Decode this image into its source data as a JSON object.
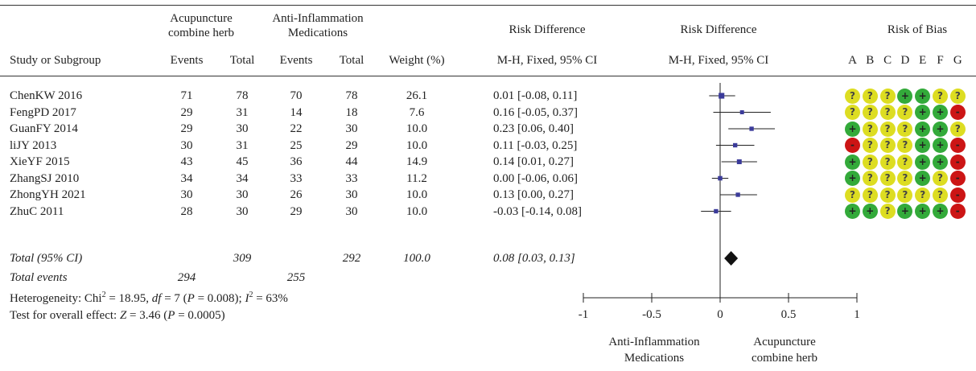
{
  "header": {
    "group1_line1": "Acupuncture",
    "group1_line2": "combine herb",
    "group2_line1": "Anti-Inflammation",
    "group2_line2": "Medications",
    "rd_title": "Risk Difference",
    "rd_plot_title": "Risk Difference",
    "rob_title": "Risk of Bias",
    "study_col": "Study or Subgroup",
    "events1": "Events",
    "total1": "Total",
    "events2": "Events",
    "total2": "Total",
    "weight": "Weight (%)",
    "rd_method": "M-H, Fixed, 95% CI",
    "rd_plot_method": "M-H, Fixed, 95% CI",
    "rob_letters": [
      "A",
      "B",
      "C",
      "D",
      "E",
      "F",
      "G"
    ]
  },
  "studies": [
    {
      "name": "ChenKW 2016",
      "e1": "71",
      "t1": "78",
      "e2": "70",
      "t2": "78",
      "weight": "26.1",
      "ci_text": "0.01 [-0.08, 0.11]",
      "rd": 0.01,
      "lo": -0.08,
      "hi": 0.11,
      "w": 26.1,
      "rob": [
        "?",
        "?",
        "?",
        "+",
        "+",
        "?",
        "?"
      ]
    },
    {
      "name": "FengPD 2017",
      "e1": "29",
      "t1": "31",
      "e2": "14",
      "t2": "18",
      "weight": "7.6",
      "ci_text": "0.16 [-0.05, 0.37]",
      "rd": 0.16,
      "lo": -0.05,
      "hi": 0.37,
      "w": 7.6,
      "rob": [
        "?",
        "?",
        "?",
        "?",
        "+",
        "+",
        "-"
      ]
    },
    {
      "name": "GuanFY 2014",
      "e1": "29",
      "t1": "30",
      "e2": "22",
      "t2": "30",
      "weight": "10.0",
      "ci_text": "0.23 [0.06, 0.40]",
      "rd": 0.23,
      "lo": 0.06,
      "hi": 0.4,
      "w": 10.0,
      "rob": [
        "+",
        "?",
        "?",
        "?",
        "+",
        "+",
        "?"
      ]
    },
    {
      "name": "liJY 2013",
      "e1": "30",
      "t1": "31",
      "e2": "25",
      "t2": "29",
      "weight": "10.0",
      "ci_text": "0.11 [-0.03, 0.25]",
      "rd": 0.11,
      "lo": -0.03,
      "hi": 0.25,
      "w": 10.0,
      "rob": [
        "-",
        "?",
        "?",
        "?",
        "+",
        "+",
        "-"
      ]
    },
    {
      "name": "XieYF 2015",
      "e1": "43",
      "t1": "45",
      "e2": "36",
      "t2": "44",
      "weight": "14.9",
      "ci_text": "0.14 [0.01, 0.27]",
      "rd": 0.14,
      "lo": 0.01,
      "hi": 0.27,
      "w": 14.9,
      "rob": [
        "+",
        "?",
        "?",
        "?",
        "+",
        "+",
        "-"
      ]
    },
    {
      "name": "ZhangSJ 2010",
      "e1": "34",
      "t1": "34",
      "e2": "33",
      "t2": "33",
      "weight": "11.2",
      "ci_text": "0.00 [-0.06, 0.06]",
      "rd": 0.0,
      "lo": -0.06,
      "hi": 0.06,
      "w": 11.2,
      "rob": [
        "+",
        "?",
        "?",
        "?",
        "+",
        "?",
        "-"
      ]
    },
    {
      "name": "ZhongYH 2021",
      "e1": "30",
      "t1": "30",
      "e2": "26",
      "t2": "30",
      "weight": "10.0",
      "ci_text": "0.13 [0.00, 0.27]",
      "rd": 0.13,
      "lo": 0.0,
      "hi": 0.27,
      "w": 10.0,
      "rob": [
        "?",
        "?",
        "?",
        "?",
        "?",
        "?",
        "-"
      ]
    },
    {
      "name": "ZhuC 2011",
      "e1": "28",
      "t1": "30",
      "e2": "29",
      "t2": "30",
      "weight": "10.0",
      "ci_text": "-0.03 [-0.14, 0.08]",
      "rd": -0.03,
      "lo": -0.14,
      "hi": 0.08,
      "w": 10.0,
      "rob": [
        "+",
        "+",
        "?",
        "+",
        "+",
        "+",
        "-"
      ]
    }
  ],
  "total": {
    "label": "Total (95% CI)",
    "t1": "309",
    "t2": "292",
    "weight": "100.0",
    "ci_text": "0.08 [0.03, 0.13]",
    "rd": 0.08,
    "lo": 0.03,
    "hi": 0.13
  },
  "total_events": {
    "label": "Total events",
    "e1": "294",
    "e2": "255"
  },
  "heterogeneity": {
    "prefix": "Heterogeneity: Chi",
    "chi_sup": "2",
    "chi_val": " = 18.95, ",
    "df_label": "df",
    "df_val": " = 7 (",
    "p_label": "P",
    "p_val": " = 0.008); ",
    "i_label": "I",
    "i_sup": "2",
    "i_val": " = 63%"
  },
  "overall_effect": {
    "prefix": "Test for overall effect: ",
    "z_label": "Z",
    "z_val": " = 3.46 (",
    "p_label": "P",
    "p_val": " = 0.0005)"
  },
  "chart_data": {
    "type": "scatter",
    "title": "Risk Difference",
    "subtitle": "M-H, Fixed, 95% CI",
    "xlim": [
      -1,
      1
    ],
    "xticks": [
      -1,
      -0.5,
      0,
      0.5,
      1
    ],
    "xtick_labels": [
      "-1",
      "-0.5",
      "0",
      "0.5",
      "1"
    ],
    "favours_left_line1": "Anti-Inflammation",
    "favours_left_line2": "Medications",
    "favours_right_line1": "Acupuncture",
    "favours_right_line2": "combine herb",
    "square_color": "#3b3b9a",
    "line_color": "#222222",
    "diamond_color": "#111111"
  },
  "rob_colors": {
    "+": "#33aa3a",
    "?": "#dddd22",
    "-": "#cc1515"
  }
}
